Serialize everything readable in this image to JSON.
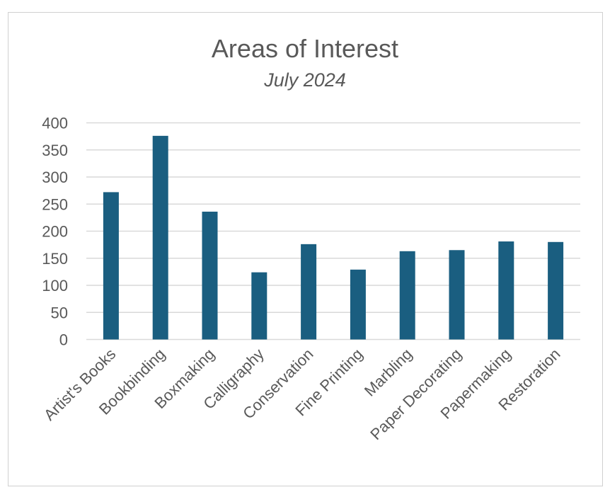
{
  "chart_data": {
    "type": "bar",
    "title": "Areas of Interest",
    "subtitle": "July 2024",
    "xlabel": "",
    "ylabel": "",
    "categories": [
      "Artist's Books",
      "Bookbinding",
      "Boxmaking",
      "Calligraphy",
      "Conservation",
      "Fine Printing",
      "Marbling",
      "Paper Decorating",
      "Papermaking",
      "Restoration"
    ],
    "values": [
      272,
      376,
      236,
      124,
      176,
      129,
      163,
      165,
      181,
      180
    ],
    "ylim": [
      0,
      400
    ],
    "yticks": [
      0,
      50,
      100,
      150,
      200,
      250,
      300,
      350,
      400
    ],
    "grid": true,
    "legend": "none",
    "bar_color": "#1a5e80"
  }
}
